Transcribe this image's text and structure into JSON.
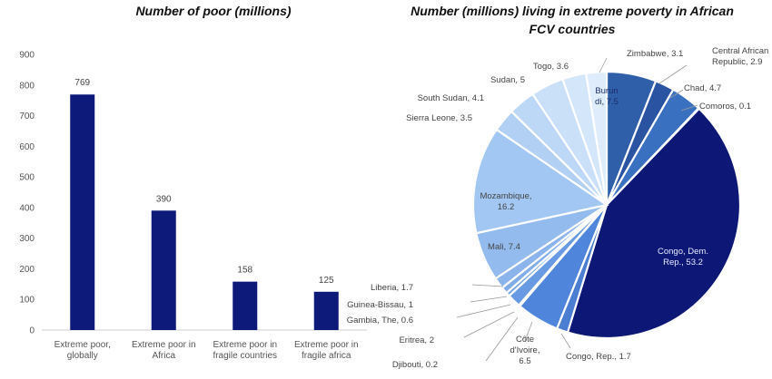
{
  "chart_data": [
    {
      "type": "bar",
      "title": "Number of poor (millions)",
      "categories": [
        [
          "Extreme poor,",
          "globally"
        ],
        [
          "Extreme poor in",
          "Africa"
        ],
        [
          "Extreme poor in",
          "fragile countries"
        ],
        [
          "Extreme poor in",
          "fragile africa"
        ]
      ],
      "values": [
        769,
        390,
        158,
        125
      ],
      "ylim": [
        0,
        900
      ],
      "yticks": [
        0,
        100,
        200,
        300,
        400,
        500,
        600,
        700,
        800,
        900
      ],
      "bar_color": "#0d1a7a",
      "grid": false,
      "xlabel": "",
      "ylabel": ""
    },
    {
      "type": "pie",
      "title": [
        "Number (millions) living in extreme poverty in African",
        "FCV countries"
      ],
      "slices": [
        {
          "label": "Burundi",
          "display": [
            "Burun",
            "di, 7.5"
          ],
          "value": 7.5,
          "color": "#2f5fa8"
        },
        {
          "label": "Central African Republic",
          "display": [
            "Central African",
            "Republic, 2.9"
          ],
          "value": 2.9,
          "color": "#2a53a2"
        },
        {
          "label": "Chad",
          "display": [
            "Chad, 4.7"
          ],
          "value": 4.7,
          "color": "#3a70c0"
        },
        {
          "label": "Comoros",
          "display": [
            "Comoros, 0.1"
          ],
          "value": 0.1,
          "color": "#1c2f8a"
        },
        {
          "label": "Congo, Dem. Rep.",
          "display": [
            "Congo, Dem.",
            "Rep., 53.2"
          ],
          "value": 53.2,
          "color": "#0d1775"
        },
        {
          "label": "Congo, Rep.",
          "display": [
            "Congo, Rep., 1.7"
          ],
          "value": 1.7,
          "color": "#4b7ed0"
        },
        {
          "label": "Côte d'Ivoire",
          "display": [
            "Côte",
            "d'Ivoire,",
            "6.5"
          ],
          "value": 6.5,
          "color": "#4f86dc"
        },
        {
          "label": "Djibouti",
          "display": [
            "Djibouti, 0.2"
          ],
          "value": 0.2,
          "color": "#5a8fe0"
        },
        {
          "label": "Eritrea",
          "display": [
            "Eritrea, 2"
          ],
          "value": 2.0,
          "color": "#6899e3"
        },
        {
          "label": "Gambia, The",
          "display": [
            "Gambia, The, 0.6"
          ],
          "value": 0.6,
          "color": "#74a3e6"
        },
        {
          "label": "Guinea-Bissau",
          "display": [
            "Guinea-Bissau, 1"
          ],
          "value": 1.0,
          "color": "#80ace9"
        },
        {
          "label": "Liberia",
          "display": [
            "Liberia, 1.7"
          ],
          "value": 1.7,
          "color": "#8bb4ec"
        },
        {
          "label": "Mali",
          "display": [
            "Mali, 7.4"
          ],
          "value": 7.4,
          "color": "#93bbee"
        },
        {
          "label": "Mozambique",
          "display": [
            "Mozambique,",
            "16.2"
          ],
          "value": 16.2,
          "color": "#a2c7f3"
        },
        {
          "label": "Sierra Leone",
          "display": [
            "Sierra Leone, 3.5"
          ],
          "value": 3.5,
          "color": "#b1d0f4"
        },
        {
          "label": "South Sudan",
          "display": [
            "South Sudan, 4.1"
          ],
          "value": 4.1,
          "color": "#bdd8f6"
        },
        {
          "label": "Sudan",
          "display": [
            "Sudan, 5"
          ],
          "value": 5.0,
          "color": "#c9e0f8"
        },
        {
          "label": "Togo",
          "display": [
            "Togo, 3.6"
          ],
          "value": 3.6,
          "color": "#d4e6fa"
        },
        {
          "label": "Zimbabwe",
          "display": [
            "Zimbabwe, 3.1"
          ],
          "value": 3.1,
          "color": "#deecfb"
        }
      ]
    }
  ]
}
